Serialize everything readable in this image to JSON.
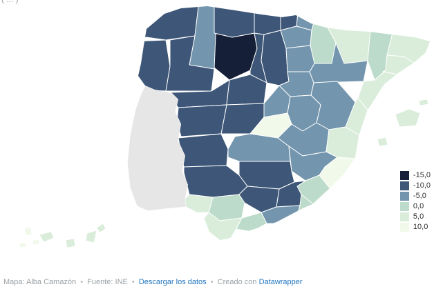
{
  "header": {
    "clipped_text": "( ... )"
  },
  "map": {
    "type": "choropleth",
    "no_data_color": "#e6e6e6",
    "provinces": [
      {
        "id": "leon",
        "bin": "-15,0"
      },
      {
        "id": "palencia",
        "bin": "-10,0"
      },
      {
        "id": "burgos",
        "bin": "-10,0"
      },
      {
        "id": "soria",
        "bin": "-5,0"
      },
      {
        "id": "zamora",
        "bin": "-10,0"
      },
      {
        "id": "valladolid",
        "bin": "-10,0"
      },
      {
        "id": "segovia",
        "bin": "-5,0"
      },
      {
        "id": "avila",
        "bin": "-10,0"
      },
      {
        "id": "salamanca",
        "bin": "-10,0"
      },
      {
        "id": "zaragoza",
        "bin": "-5,0"
      },
      {
        "id": "huesca",
        "bin": "5,0"
      },
      {
        "id": "teruel",
        "bin": "-5,0"
      },
      {
        "id": "guadalajara",
        "bin": "-5,0"
      },
      {
        "id": "cuenca",
        "bin": "-5,0"
      },
      {
        "id": "madrid",
        "bin": "10,0"
      },
      {
        "id": "toledo",
        "bin": "-5,0"
      },
      {
        "id": "ciudad-real",
        "bin": "-10,0"
      },
      {
        "id": "a-coruna",
        "bin": "-10,0"
      },
      {
        "id": "lugo",
        "bin": "-5,0"
      },
      {
        "id": "pontevedra",
        "bin": "-10,0"
      },
      {
        "id": "ourense",
        "bin": "-10,0"
      },
      {
        "id": "asturias",
        "bin": "-10,0"
      },
      {
        "id": "cantabria",
        "bin": "-10,0"
      },
      {
        "id": "bizkaia",
        "bin": "-10,0"
      },
      {
        "id": "gipuzkoa",
        "bin": "-5,0"
      },
      {
        "id": "alava",
        "bin": "-5,0"
      },
      {
        "id": "navarra",
        "bin": "0,0"
      },
      {
        "id": "la-rioja",
        "bin": "-5,0"
      },
      {
        "id": "lleida",
        "bin": "0,0"
      },
      {
        "id": "girona",
        "bin": "5,0"
      },
      {
        "id": "barcelona",
        "bin": "5,0"
      },
      {
        "id": "tarragona",
        "bin": "5,0"
      },
      {
        "id": "castellon",
        "bin": "5,0"
      },
      {
        "id": "valencia",
        "bin": "5,0"
      },
      {
        "id": "albacete",
        "bin": "-5,0"
      },
      {
        "id": "alicante",
        "bin": "10,0"
      },
      {
        "id": "murcia",
        "bin": "0,0"
      },
      {
        "id": "caceres",
        "bin": "-10,0"
      },
      {
        "id": "badajoz",
        "bin": "-10,0"
      },
      {
        "id": "huelva",
        "bin": "5,0"
      },
      {
        "id": "sevilla",
        "bin": "0,0"
      },
      {
        "id": "cordoba",
        "bin": "-10,0"
      },
      {
        "id": "jaen",
        "bin": "-10,0"
      },
      {
        "id": "cadiz",
        "bin": "5,0"
      },
      {
        "id": "malaga",
        "bin": "0,0"
      },
      {
        "id": "granada",
        "bin": "-5,0"
      },
      {
        "id": "almeria",
        "bin": "0,0"
      },
      {
        "id": "mallorca",
        "bin": "5,0"
      },
      {
        "id": "menorca",
        "bin": "5,0"
      },
      {
        "id": "ibiza",
        "bin": "5,0"
      },
      {
        "id": "lanzarote",
        "bin": "5,0"
      },
      {
        "id": "fuerteventura",
        "bin": "5,0"
      },
      {
        "id": "gran-canaria",
        "bin": "5,0"
      },
      {
        "id": "tenerife",
        "bin": "5,0"
      },
      {
        "id": "la-gomera",
        "bin": "10,0"
      },
      {
        "id": "la-palma",
        "bin": "10,0"
      },
      {
        "id": "el-hierro",
        "bin": "10,0"
      }
    ]
  },
  "legend": {
    "items": [
      {
        "label": "-15,0",
        "color": "#161f38"
      },
      {
        "label": "-10,0",
        "color": "#3e5778"
      },
      {
        "label": "-5,0",
        "color": "#7395ad"
      },
      {
        "label": "0,0",
        "color": "#bcdbca"
      },
      {
        "label": "5,0",
        "color": "#d9edda"
      },
      {
        "label": "10,0",
        "color": "#f1f9eb"
      }
    ]
  },
  "footer": {
    "credit": "Mapa: Alba Camazón",
    "source": "Fuente: INE",
    "download_link": "Descargar los datos",
    "created_with": "Creado con",
    "datawrapper_link": "Datawrapper",
    "separator": "•",
    "link_color": "#2276c0"
  }
}
